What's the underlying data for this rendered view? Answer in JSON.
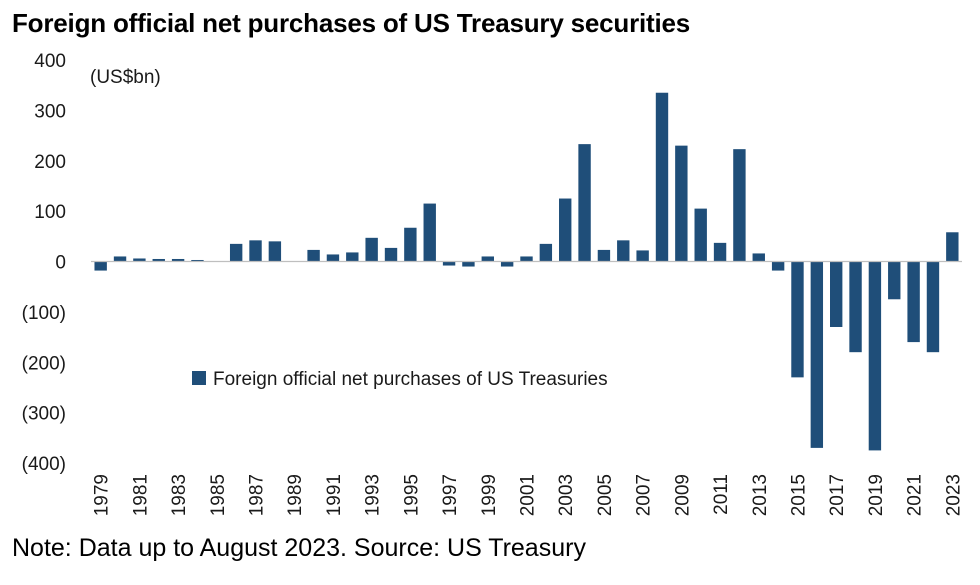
{
  "chart_data": {
    "type": "bar",
    "title": "Foreign official net purchases of US Treasury securities",
    "unit_label": "(US$bn)",
    "note": "Note: Data up to August 2023. Source: US Treasury",
    "ylim": [
      -400,
      400
    ],
    "y_ticks": [
      400,
      300,
      200,
      100,
      0,
      -100,
      -200,
      -300,
      -400
    ],
    "y_tick_labels": [
      "400",
      "300",
      "200",
      "100",
      "0",
      "(100)",
      "(200)",
      "(300)",
      "(400)"
    ],
    "x_tick_labels": [
      "1979",
      "1981",
      "1983",
      "1985",
      "1987",
      "1989",
      "1991",
      "1993",
      "1995",
      "1997",
      "1999",
      "2001",
      "2003",
      "2005",
      "2007",
      "2009",
      "2011",
      "2013",
      "2015",
      "2017",
      "2019",
      "2021",
      "2023"
    ],
    "grid": false,
    "legend_position": "bottom-center",
    "bar_color": "#1f4e79",
    "categories": [
      "1979",
      "1980",
      "1981",
      "1982",
      "1983",
      "1984",
      "1985",
      "1986",
      "1987",
      "1988",
      "1989",
      "1990",
      "1991",
      "1992",
      "1993",
      "1994",
      "1995",
      "1996",
      "1997",
      "1998",
      "1999",
      "2000",
      "2001",
      "2002",
      "2003",
      "2004",
      "2005",
      "2006",
      "2007",
      "2008",
      "2009",
      "2010",
      "2011",
      "2012",
      "2013",
      "2014",
      "2015",
      "2016",
      "2017",
      "2018",
      "2019",
      "2020",
      "2021",
      "2022",
      "2023"
    ],
    "series": [
      {
        "name": "Foreign official net purchases of US Treasuries",
        "values": [
          -18,
          10,
          6,
          5,
          5,
          3,
          0,
          35,
          42,
          40,
          0,
          23,
          14,
          18,
          47,
          27,
          67,
          115,
          -8,
          -10,
          10,
          -10,
          10,
          35,
          125,
          233,
          23,
          42,
          22,
          335,
          230,
          105,
          37,
          223,
          16,
          -18,
          -230,
          -370,
          -130,
          -180,
          -375,
          -75,
          -160,
          -180,
          58
        ]
      }
    ]
  }
}
